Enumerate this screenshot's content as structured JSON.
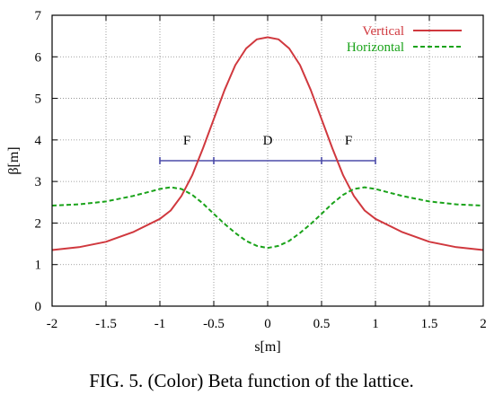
{
  "caption": "FIG. 5. (Color) Beta function of the lattice.",
  "chart_data": {
    "type": "line",
    "xlabel": "s[m]",
    "ylabel": "β[m]",
    "xlim": [
      -2,
      2
    ],
    "ylim": [
      0,
      7
    ],
    "xticks": [
      -2,
      -1.5,
      -1,
      -0.5,
      0,
      0.5,
      1,
      1.5,
      2
    ],
    "xtick_labels": [
      "-2",
      "-1.5",
      "-1",
      "-0.5",
      "0",
      "0.5",
      "1",
      "1.5",
      "2"
    ],
    "yticks": [
      0,
      1,
      2,
      3,
      4,
      5,
      6,
      7
    ],
    "ytick_labels": [
      "0",
      "1",
      "2",
      "3",
      "4",
      "5",
      "6",
      "7"
    ],
    "grid": true,
    "legend_position": "top-right",
    "series": [
      {
        "name": "Vertical",
        "color": "#d0383e",
        "style": "solid",
        "x": [
          -2,
          -1.75,
          -1.5,
          -1.25,
          -1,
          -0.9,
          -0.8,
          -0.7,
          -0.6,
          -0.5,
          -0.4,
          -0.3,
          -0.2,
          -0.1,
          0,
          0.1,
          0.2,
          0.3,
          0.4,
          0.5,
          0.6,
          0.7,
          0.8,
          0.9,
          1,
          1.25,
          1.5,
          1.75,
          2
        ],
        "y": [
          1.35,
          1.42,
          1.55,
          1.78,
          2.1,
          2.3,
          2.65,
          3.15,
          3.8,
          4.5,
          5.2,
          5.8,
          6.2,
          6.42,
          6.47,
          6.42,
          6.2,
          5.8,
          5.2,
          4.5,
          3.8,
          3.15,
          2.65,
          2.3,
          2.1,
          1.78,
          1.55,
          1.42,
          1.35
        ]
      },
      {
        "name": "Horizontal",
        "color": "#1aa31a",
        "style": "dashed",
        "x": [
          -2,
          -1.75,
          -1.5,
          -1.25,
          -1.1,
          -1,
          -0.9,
          -0.8,
          -0.7,
          -0.6,
          -0.5,
          -0.4,
          -0.3,
          -0.2,
          -0.1,
          0,
          0.1,
          0.2,
          0.3,
          0.4,
          0.5,
          0.6,
          0.7,
          0.8,
          0.9,
          1,
          1.1,
          1.25,
          1.5,
          1.75,
          2
        ],
        "y": [
          2.42,
          2.45,
          2.52,
          2.65,
          2.75,
          2.82,
          2.86,
          2.82,
          2.68,
          2.47,
          2.22,
          1.98,
          1.76,
          1.57,
          1.45,
          1.4,
          1.45,
          1.57,
          1.76,
          1.98,
          2.22,
          2.47,
          2.68,
          2.82,
          2.86,
          2.82,
          2.75,
          2.65,
          2.52,
          2.45,
          2.42
        ]
      }
    ],
    "lattice": {
      "y": 3.5,
      "color": "#4b4ba8",
      "ticks": [
        -1,
        -0.5,
        0.5,
        1
      ],
      "segments": [
        {
          "label": "F",
          "x": -0.75
        },
        {
          "label": "D",
          "x": 0
        },
        {
          "label": "F",
          "x": 0.75
        }
      ],
      "label_y": 4.0
    }
  }
}
